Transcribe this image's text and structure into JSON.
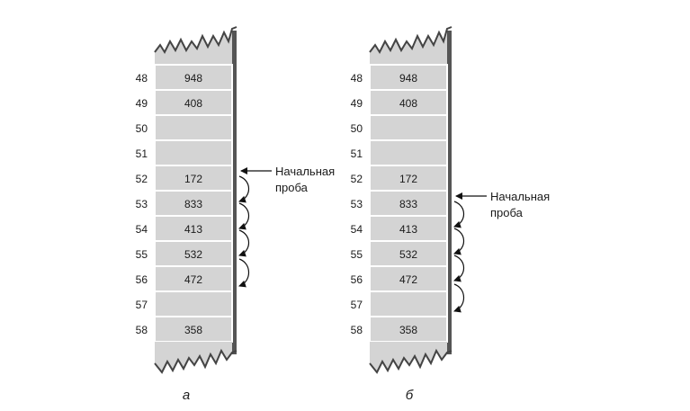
{
  "diagrams": [
    {
      "caption": "а",
      "rows": [
        {
          "index": "48",
          "value": "948"
        },
        {
          "index": "49",
          "value": "408"
        },
        {
          "index": "50",
          "value": ""
        },
        {
          "index": "51",
          "value": ""
        },
        {
          "index": "52",
          "value": "172"
        },
        {
          "index": "53",
          "value": "833"
        },
        {
          "index": "54",
          "value": "413"
        },
        {
          "index": "55",
          "value": "532"
        },
        {
          "index": "56",
          "value": "472"
        },
        {
          "index": "57",
          "value": ""
        },
        {
          "index": "58",
          "value": "358"
        }
      ],
      "probe_label": [
        "Начальная",
        "проба"
      ],
      "probe_row": 4,
      "probe_hops": [
        4,
        5,
        6,
        7
      ]
    },
    {
      "caption": "б",
      "rows": [
        {
          "index": "48",
          "value": "948"
        },
        {
          "index": "49",
          "value": "408"
        },
        {
          "index": "50",
          "value": ""
        },
        {
          "index": "51",
          "value": ""
        },
        {
          "index": "52",
          "value": "172"
        },
        {
          "index": "53",
          "value": "833"
        },
        {
          "index": "54",
          "value": "413"
        },
        {
          "index": "55",
          "value": "532"
        },
        {
          "index": "56",
          "value": "472"
        },
        {
          "index": "57",
          "value": ""
        },
        {
          "index": "58",
          "value": "358"
        }
      ],
      "probe_label": [
        "Начальная",
        "проба"
      ],
      "probe_row": 5,
      "probe_hops": [
        5,
        6,
        7,
        8
      ]
    }
  ]
}
